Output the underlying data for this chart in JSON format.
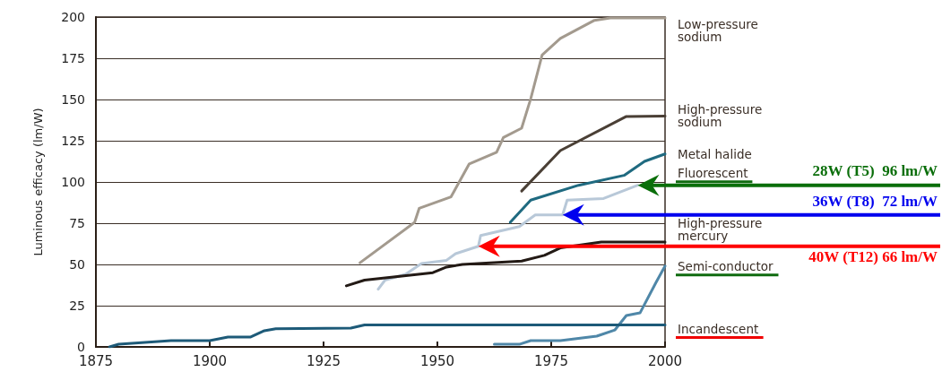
{
  "chart_data": {
    "type": "line",
    "ylabel": "Luminous efficacy (lm/W)",
    "xlim": [
      1875,
      2000
    ],
    "xticks": [
      1875,
      1900,
      1925,
      1950,
      1975,
      2000
    ],
    "ylim": [
      0,
      200
    ],
    "yticks": [
      0,
      25,
      50,
      75,
      100,
      125,
      150,
      175,
      200
    ],
    "grid": "y",
    "legend": false,
    "marker": "none",
    "line_style": "solid",
    "series": [
      {
        "name": "Low-pressure sodium",
        "color": "#a39a8e",
        "x": [
          1933,
          1945,
          1946,
          1953,
          1957,
          1963,
          1964.5,
          1968.5,
          1970.5,
          1973,
          1977,
          1984.5,
          1988,
          2000
        ],
        "values": [
          51,
          75.5,
          84,
          91,
          111,
          118,
          127,
          132.6,
          150.5,
          177,
          187,
          198,
          199.5,
          199.5
        ]
      },
      {
        "name": "High-pressure sodium",
        "color": "#4a3f35",
        "x": [
          1968.5,
          1977,
          1991.5,
          2000
        ],
        "values": [
          94.5,
          119,
          139.7,
          140
        ]
      },
      {
        "name": "Metal halide",
        "color": "#1f6a80",
        "x": [
          1966,
          1970.5,
          1981,
          1991,
          1995.5,
          2000
        ],
        "values": [
          75.5,
          89,
          98,
          104,
          112.5,
          117
        ]
      },
      {
        "name": "Fluorescent",
        "color": "#b8c8d8",
        "x": [
          1937,
          1938.5,
          1943,
          1946.5,
          1952,
          1954,
          1959,
          1959.5,
          1968,
          1971.5,
          1977.5,
          1978.5,
          1986.5,
          1994
        ],
        "values": [
          35,
          40.5,
          44,
          50.5,
          52.5,
          56.5,
          61,
          67.5,
          73,
          80,
          80,
          89,
          90,
          98
        ]
      },
      {
        "name": "High-pressure mercury",
        "color": "#231a15",
        "x": [
          1930,
          1934,
          1949,
          1952,
          1955.5,
          1968.5,
          1973.5,
          1977,
          1986,
          2000
        ],
        "values": [
          37,
          40.5,
          45,
          48.4,
          50,
          52,
          55.5,
          60,
          63.6,
          63.6
        ]
      },
      {
        "name": "Semi-conductor",
        "color": "#4f87a8",
        "x": [
          1962.5,
          1968,
          1970.5,
          1977,
          1985,
          1989,
          1991.5,
          1994.5,
          1998,
          2000
        ],
        "values": [
          1.6,
          1.6,
          3.8,
          3.8,
          6.5,
          10.3,
          19,
          20.6,
          39,
          49
        ]
      },
      {
        "name": "Incandescent",
        "color": "#1d5a78",
        "x": [
          1878,
          1880,
          1891.5,
          1900,
          1904,
          1909,
          1912,
          1914.5,
          1931,
          1934,
          2000
        ],
        "values": [
          0,
          1.6,
          3.8,
          3.8,
          6,
          6,
          9.8,
          11,
          11.4,
          13.3,
          13.3
        ]
      }
    ],
    "annotations": [
      "28W (T5)  96 lm/W",
      "36W (T8)  72 lm/W",
      "40W (T12) 66 lm/W"
    ]
  }
}
